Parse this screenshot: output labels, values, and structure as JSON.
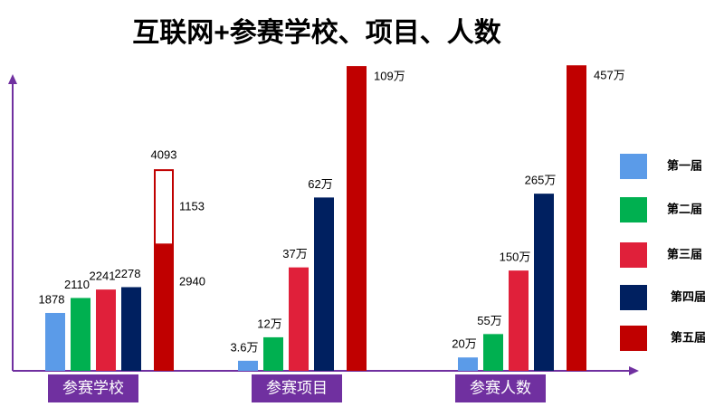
{
  "title": "互联网+参赛学校、项目、人数",
  "legend": [
    {
      "name": "第一届",
      "color": "#5b9be8"
    },
    {
      "name": "第二届",
      "color": "#00b050"
    },
    {
      "name": "第三届",
      "color": "#e0203a"
    },
    {
      "name": "第四届",
      "color": "#002060"
    },
    {
      "name": "第五届",
      "color": "#c00000"
    }
  ],
  "chart_data": [
    {
      "type": "bar",
      "title": "参赛学校",
      "values": [
        1878,
        2110,
        2241,
        2278,
        2940
      ],
      "outlined_segment": 1153,
      "total": 4093,
      "ylim": [
        980,
        5750
      ]
    },
    {
      "type": "bar",
      "title": "参赛项目",
      "values": [
        3.6,
        12,
        37,
        62,
        109
      ],
      "value_labels": [
        "3.6万",
        "12万",
        "37万",
        "62万",
        "109万"
      ],
      "ylim": [
        0,
        110
      ]
    },
    {
      "type": "bar",
      "title": "参赛人数",
      "values": [
        20,
        55,
        150,
        265,
        457
      ],
      "value_labels": [
        "20万",
        "55万",
        "150万",
        "265万",
        "457万"
      ],
      "ylim": [
        0,
        460
      ]
    }
  ]
}
